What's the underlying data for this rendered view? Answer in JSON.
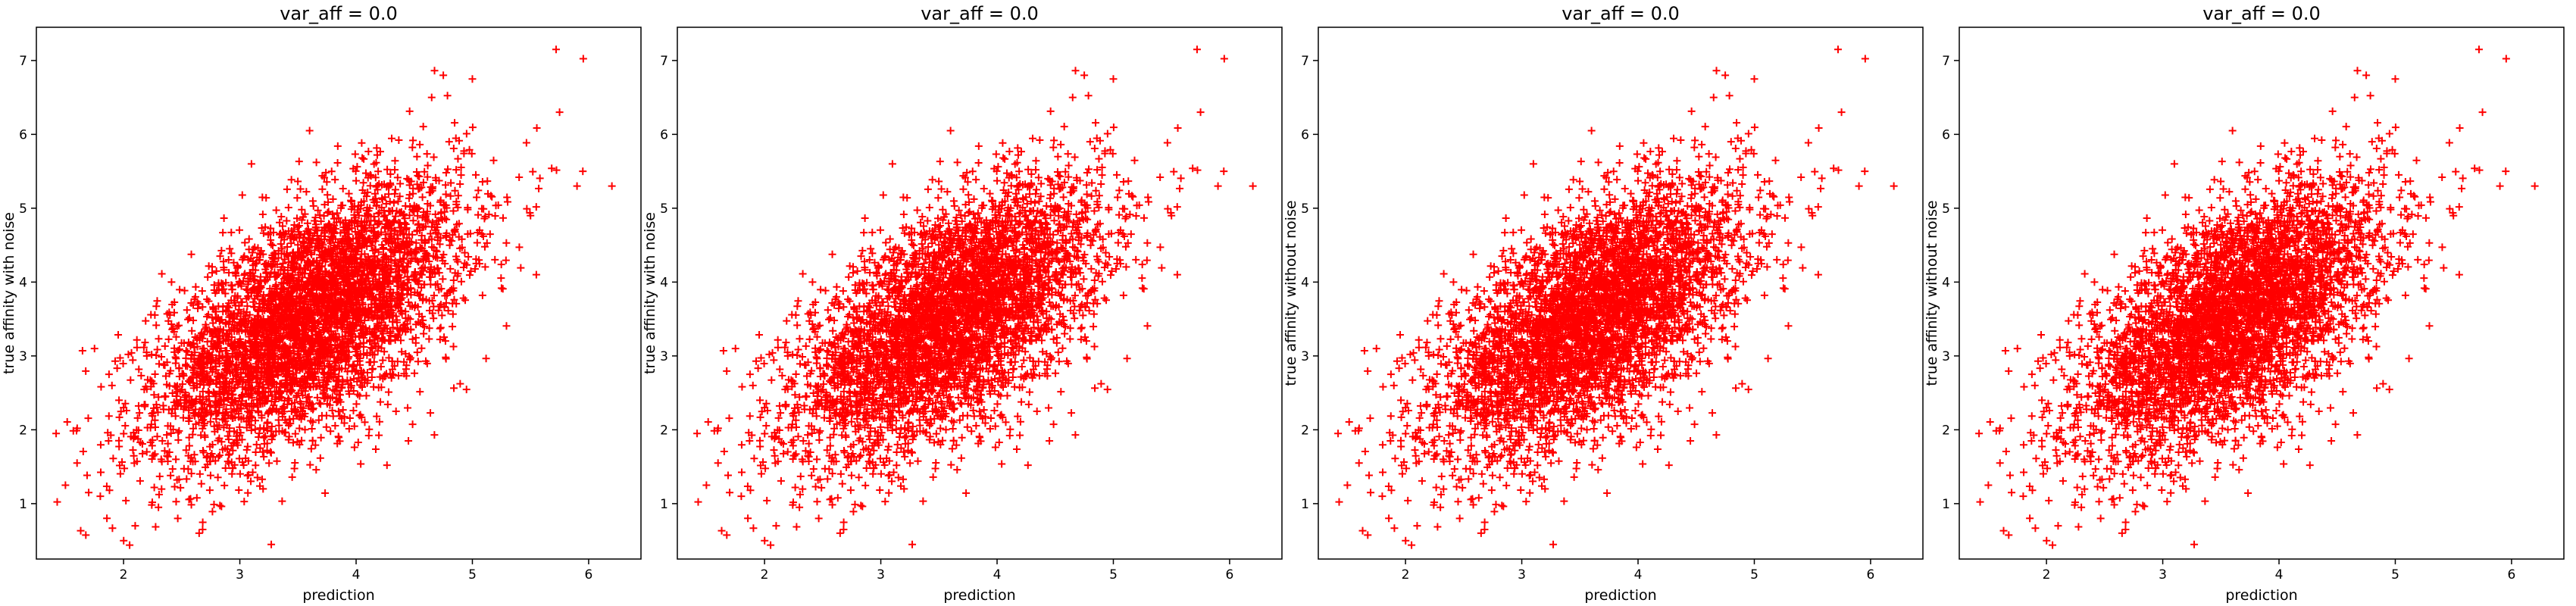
{
  "chart_data": [
    {
      "type": "scatter",
      "title": "var_aff = 0.0",
      "xlabel": "prediction",
      "ylabel": "true affinity with noise",
      "xlim": [
        1.25,
        6.45
      ],
      "ylim": [
        0.25,
        7.45
      ],
      "xticks": [
        "2",
        "3",
        "4",
        "5",
        "6"
      ],
      "yticks": [
        "1",
        "2",
        "3",
        "4",
        "5",
        "6",
        "7"
      ],
      "marker": "+",
      "color": "#ff0000",
      "series": [
        {
          "x_center": 3.6,
          "y_center": 3.5,
          "x_std": 0.65,
          "y_std": 0.9,
          "correlation": 0.6
        }
      ],
      "points": [
        [
          1.42,
          1.95
        ],
        [
          1.5,
          1.25
        ],
        [
          1.6,
          1.55
        ],
        [
          1.7,
          1.15
        ],
        [
          1.75,
          3.1
        ],
        [
          1.8,
          1.1
        ],
        [
          1.9,
          2.6
        ],
        [
          2.1,
          0.7
        ],
        [
          2.3,
          0.95
        ],
        [
          2.45,
          1.6
        ],
        [
          2.65,
          0.6
        ],
        [
          2.68,
          0.65
        ],
        [
          2.7,
          1.9
        ],
        [
          3.1,
          5.6
        ],
        [
          3.2,
          1.2
        ],
        [
          3.6,
          6.05
        ],
        [
          4.45,
          1.85
        ],
        [
          4.65,
          6.5
        ],
        [
          4.75,
          6.8
        ],
        [
          5.0,
          6.75
        ],
        [
          5.5,
          4.9
        ],
        [
          5.55,
          4.1
        ],
        [
          5.72,
          7.15
        ],
        [
          5.75,
          6.3
        ],
        [
          5.9,
          5.3
        ],
        [
          5.95,
          5.5
        ],
        [
          6.2,
          5.3
        ],
        [
          2.0,
          2.3
        ],
        [
          2.2,
          3.0
        ],
        [
          4.8,
          5.9
        ]
      ]
    },
    {
      "type": "scatter",
      "title": "var_aff = 0.0",
      "xlabel": "prediction",
      "ylabel": "true affinity with noise",
      "xlim": [
        1.25,
        6.45
      ],
      "ylim": [
        0.25,
        7.45
      ],
      "xticks": [
        "2",
        "3",
        "4",
        "5",
        "6"
      ],
      "yticks": [
        "1",
        "2",
        "3",
        "4",
        "5",
        "6",
        "7"
      ],
      "marker": "+",
      "color": "#ff0000",
      "series": [
        {
          "x_center": 3.6,
          "y_center": 3.5,
          "x_std": 0.65,
          "y_std": 0.9,
          "correlation": 0.6
        }
      ],
      "points": [
        [
          1.42,
          1.95
        ],
        [
          1.5,
          1.25
        ],
        [
          1.6,
          1.55
        ],
        [
          1.7,
          1.15
        ],
        [
          1.75,
          3.1
        ],
        [
          1.8,
          1.1
        ],
        [
          1.9,
          2.6
        ],
        [
          2.1,
          0.7
        ],
        [
          2.3,
          0.95
        ],
        [
          2.45,
          1.6
        ],
        [
          2.65,
          0.6
        ],
        [
          2.68,
          0.65
        ],
        [
          2.7,
          1.9
        ],
        [
          3.1,
          5.6
        ],
        [
          3.2,
          1.2
        ],
        [
          3.6,
          6.05
        ],
        [
          4.45,
          1.85
        ],
        [
          4.65,
          6.5
        ],
        [
          4.75,
          6.8
        ],
        [
          5.0,
          6.75
        ],
        [
          5.5,
          4.9
        ],
        [
          5.55,
          4.1
        ],
        [
          5.72,
          7.15
        ],
        [
          5.75,
          6.3
        ],
        [
          5.9,
          5.3
        ],
        [
          5.95,
          5.5
        ],
        [
          6.2,
          5.3
        ],
        [
          2.0,
          2.3
        ],
        [
          2.2,
          3.0
        ],
        [
          4.8,
          5.9
        ]
      ]
    },
    {
      "type": "scatter",
      "title": "var_aff = 0.0",
      "xlabel": "prediction",
      "ylabel": "true affinity without noise",
      "xlim": [
        1.25,
        6.45
      ],
      "ylim": [
        0.25,
        7.45
      ],
      "xticks": [
        "2",
        "3",
        "4",
        "5",
        "6"
      ],
      "yticks": [
        "1",
        "2",
        "3",
        "4",
        "5",
        "6",
        "7"
      ],
      "marker": "+",
      "color": "#ff0000",
      "series": [
        {
          "x_center": 3.6,
          "y_center": 3.5,
          "x_std": 0.65,
          "y_std": 0.9,
          "correlation": 0.6
        }
      ],
      "points": [
        [
          1.42,
          1.95
        ],
        [
          1.5,
          1.25
        ],
        [
          1.6,
          1.55
        ],
        [
          1.7,
          1.15
        ],
        [
          1.75,
          3.1
        ],
        [
          1.8,
          1.1
        ],
        [
          1.9,
          2.6
        ],
        [
          2.1,
          0.7
        ],
        [
          2.3,
          0.95
        ],
        [
          2.45,
          1.6
        ],
        [
          2.65,
          0.6
        ],
        [
          2.68,
          0.65
        ],
        [
          2.7,
          1.9
        ],
        [
          3.1,
          5.6
        ],
        [
          3.2,
          1.2
        ],
        [
          3.6,
          6.05
        ],
        [
          4.45,
          1.85
        ],
        [
          4.65,
          6.5
        ],
        [
          4.75,
          6.8
        ],
        [
          5.0,
          6.75
        ],
        [
          5.5,
          4.9
        ],
        [
          5.55,
          4.1
        ],
        [
          5.72,
          7.15
        ],
        [
          5.75,
          6.3
        ],
        [
          5.9,
          5.3
        ],
        [
          5.95,
          5.5
        ],
        [
          6.2,
          5.3
        ],
        [
          2.0,
          2.3
        ],
        [
          2.2,
          3.0
        ],
        [
          4.8,
          5.9
        ]
      ]
    },
    {
      "type": "scatter",
      "title": "var_aff = 0.0",
      "xlabel": "prediction",
      "ylabel": "true affinity without noise",
      "xlim": [
        1.25,
        6.45
      ],
      "ylim": [
        0.25,
        7.45
      ],
      "xticks": [
        "2",
        "3",
        "4",
        "5",
        "6"
      ],
      "yticks": [
        "1",
        "2",
        "3",
        "4",
        "5",
        "6",
        "7"
      ],
      "marker": "+",
      "color": "#ff0000",
      "series": [
        {
          "x_center": 3.6,
          "y_center": 3.5,
          "x_std": 0.65,
          "y_std": 0.9,
          "correlation": 0.6
        }
      ],
      "points": [
        [
          1.42,
          1.95
        ],
        [
          1.5,
          1.25
        ],
        [
          1.6,
          1.55
        ],
        [
          1.7,
          1.15
        ],
        [
          1.75,
          3.1
        ],
        [
          1.8,
          1.1
        ],
        [
          1.9,
          2.6
        ],
        [
          2.1,
          0.7
        ],
        [
          2.3,
          0.95
        ],
        [
          2.45,
          1.6
        ],
        [
          2.65,
          0.6
        ],
        [
          2.68,
          0.65
        ],
        [
          2.7,
          1.9
        ],
        [
          3.1,
          5.6
        ],
        [
          3.2,
          1.2
        ],
        [
          3.6,
          6.05
        ],
        [
          4.45,
          1.85
        ],
        [
          4.65,
          6.5
        ],
        [
          4.75,
          6.8
        ],
        [
          5.0,
          6.75
        ],
        [
          5.5,
          4.9
        ],
        [
          5.55,
          4.1
        ],
        [
          5.72,
          7.15
        ],
        [
          5.75,
          6.3
        ],
        [
          5.9,
          5.3
        ],
        [
          5.95,
          5.5
        ],
        [
          6.2,
          5.3
        ],
        [
          2.0,
          2.3
        ],
        [
          2.2,
          3.0
        ],
        [
          4.8,
          5.9
        ]
      ]
    }
  ]
}
